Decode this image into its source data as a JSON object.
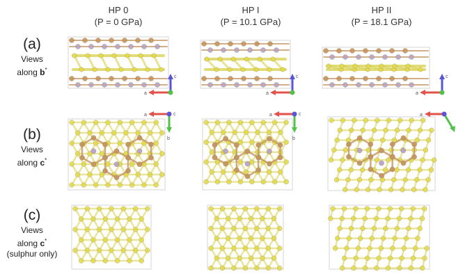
{
  "columns": [
    {
      "name": "HP 0",
      "pressure": "(P = 0 GPa)"
    },
    {
      "name": "HP I",
      "pressure": "(P = 10.1 GPa)"
    },
    {
      "name": "HP II",
      "pressure": "(P = 18.1 GPa)"
    }
  ],
  "rows": [
    {
      "letter": "(a)",
      "line1": "Views",
      "line2_prefix": "along ",
      "axis": "b",
      "star": "*",
      "extra": ""
    },
    {
      "letter": "(b)",
      "line1": "Views",
      "line2_prefix": "along ",
      "axis": "c",
      "star": "*",
      "extra": ""
    },
    {
      "letter": "(c)",
      "line1": "Views",
      "line2_prefix": "along ",
      "axis": "c",
      "star": "*",
      "extra": "(sulphur only)"
    }
  ],
  "axis_labels": {
    "a": "a",
    "b": "b",
    "c": "c"
  },
  "colors": {
    "sulphur": "#e3dc4e",
    "sulphur_bond": "#d8d04a",
    "metal": "#c59561",
    "metal_bond": "#c89a68",
    "lilac": "#b7a3c9",
    "axis_a": "#e0524a",
    "axis_b": "#52c24a",
    "axis_c": "#5a55d6",
    "axis_origin": "#8a7ab8"
  }
}
